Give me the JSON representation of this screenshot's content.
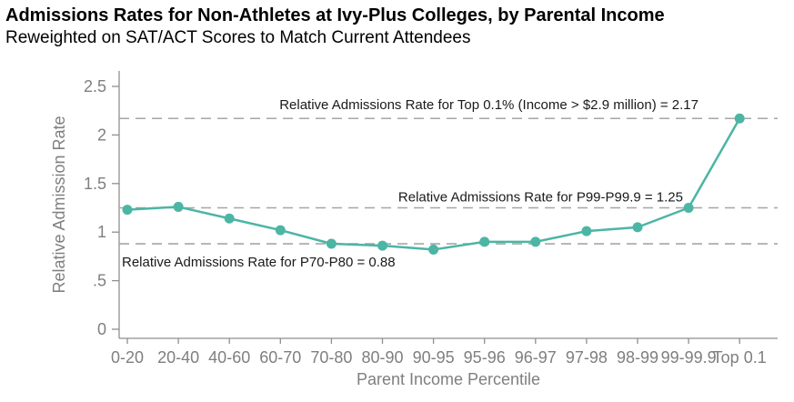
{
  "header": {
    "title": "Admissions Rates for Non-Athletes at Ivy-Plus Colleges, by Parental Income",
    "subtitle": "Reweighted on SAT/ACT Scores to Match Current Attendees"
  },
  "chart_data": {
    "type": "line",
    "title": "Admissions Rates for Non-Athletes at Ivy-Plus Colleges, by Parental Income",
    "subtitle": "Reweighted on SAT/ACT Scores to Match Current Attendees",
    "xlabel": "Parent Income Percentile",
    "ylabel": "Relative Admission Rate",
    "categories": [
      "0-20",
      "20-40",
      "40-60",
      "60-70",
      "70-80",
      "80-90",
      "90-95",
      "95-96",
      "96-97",
      "97-98",
      "98-99",
      "99-99.9",
      "Top 0.1"
    ],
    "values": [
      1.23,
      1.26,
      1.14,
      1.02,
      0.88,
      0.86,
      0.82,
      0.9,
      0.9,
      1.01,
      1.05,
      1.25,
      2.17
    ],
    "ylim": [
      0,
      2.5
    ],
    "ytick_values": [
      0,
      0.5,
      1,
      1.5,
      2,
      2.5
    ],
    "ytick_labels": [
      "0",
      ".5",
      "1",
      "1.5",
      "2",
      "2.5"
    ],
    "grid": false,
    "legend_position": "none",
    "reference_lines": [
      {
        "value": 2.17,
        "label": "Relative Admissions Rate for Top 0.1% (Income > $2.9 million) = 2.17"
      },
      {
        "value": 1.25,
        "label": "Relative Admissions Rate for P99-P99.9 = 1.25"
      },
      {
        "value": 0.88,
        "label": "Relative Admissions Rate for P70-P80 = 0.88"
      }
    ],
    "colors": {
      "series": "#4cb5a4",
      "axis": "#8f8f8f",
      "tick_text": "#7f7f7f",
      "reference_line": "#a6a6a6",
      "annotation_text": "#1a1a1a"
    }
  }
}
